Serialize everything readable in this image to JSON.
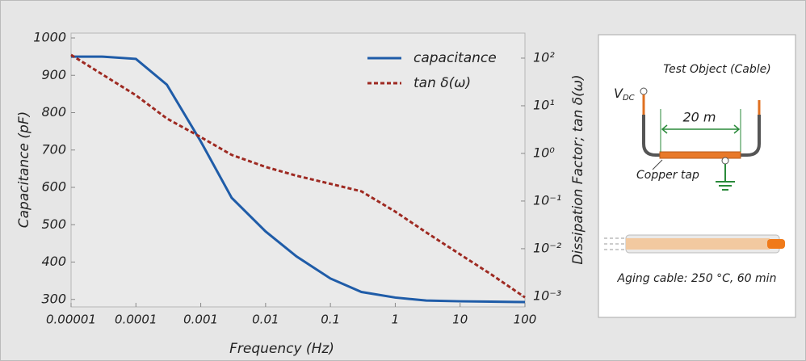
{
  "chart_data": {
    "type": "line",
    "x_label": "Frequency (Hz)",
    "y_label": "Capacitance (pF)",
    "y2_label": "Dissipation Factor; tan δ(ω)",
    "x": [
      1e-05,
      3e-05,
      0.0001,
      0.0003,
      0.001,
      0.003,
      0.01,
      0.03,
      0.1,
      0.3,
      1,
      3,
      10,
      30,
      100
    ],
    "series": [
      {
        "name": "capacitance",
        "color": "#1f5ca8",
        "values": [
          950,
          950,
          944,
          875,
          723,
          572,
          482,
          415,
          356,
          320,
          305,
          297,
          295,
          294,
          293
        ]
      },
      {
        "name": "tan δ(ω)",
        "color": "#9e2a22",
        "axis": "y2",
        "values": [
          117,
          46,
          16.6,
          5.4,
          2.2,
          0.93,
          0.52,
          0.34,
          0.23,
          0.16,
          0.06,
          0.022,
          0.0076,
          0.0029,
          0.00095
        ]
      }
    ],
    "xscale": "log",
    "y2scale": "log",
    "xlim": [
      1e-05,
      100
    ],
    "xticks": [
      1e-05,
      0.0001,
      0.001,
      0.01,
      0.1,
      1,
      10,
      100
    ],
    "ylim": [
      280,
      1013
    ],
    "yticks": [
      300,
      400,
      500,
      600,
      700,
      800,
      900,
      1000
    ],
    "y2lim": [
      0.0006,
      335
    ],
    "y2ticks": [
      {
        "value": 100,
        "label": "10²"
      },
      {
        "value": 10,
        "label": "10¹"
      },
      {
        "value": 1,
        "label": "10⁰"
      },
      {
        "value": 0.1,
        "label": "10⁻¹"
      },
      {
        "value": 0.01,
        "label": "10⁻²"
      },
      {
        "value": 0.001,
        "label": "10⁻³"
      }
    ],
    "legend": "upper right"
  },
  "diagram": {
    "title": "Test Object (Cable)",
    "voltage": {
      "main": "V",
      "sub": "DC"
    },
    "length": "20 m",
    "tap": "Copper tap",
    "caption": "Aging cable: 250 °C, 60 min"
  }
}
